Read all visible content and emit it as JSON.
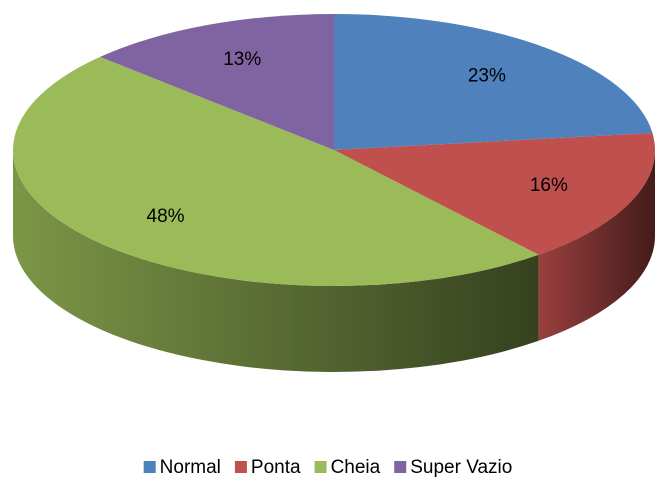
{
  "chart_data": {
    "type": "pie",
    "categories": [
      "Normal",
      "Ponta",
      "Cheia",
      "Super Vazio"
    ],
    "values": [
      23,
      16,
      48,
      13
    ],
    "value_labels": [
      "23%",
      "16%",
      "48%",
      "13%"
    ],
    "colors": [
      "#4f81bd",
      "#c0504d",
      "#9bbb59",
      "#8064a2"
    ],
    "legend": "bottom"
  }
}
